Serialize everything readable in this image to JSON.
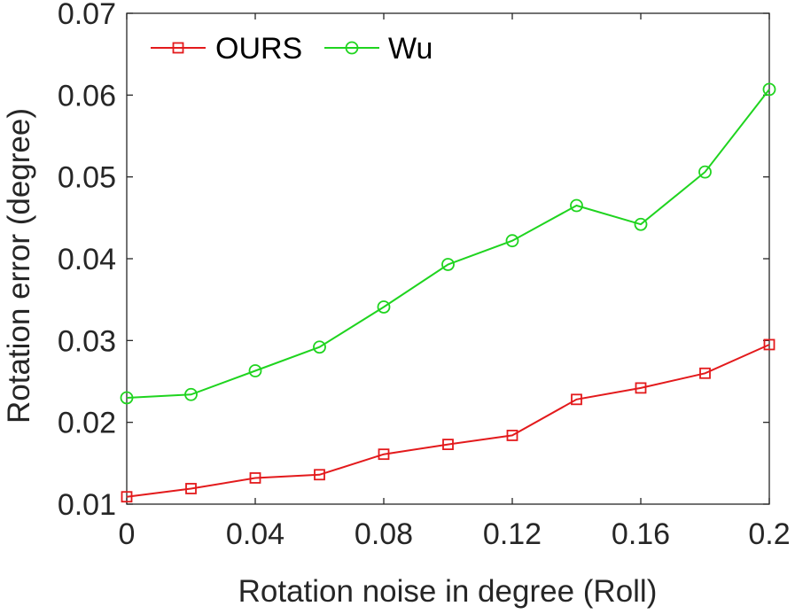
{
  "chart_data": {
    "type": "line",
    "title": "",
    "xlabel": "Rotation noise in degree (Roll)",
    "ylabel": "Rotation error (degree)",
    "xlim": [
      0,
      0.2
    ],
    "ylim": [
      0.01,
      0.07
    ],
    "x_ticks": [
      "0",
      "0.04",
      "0.08",
      "0.12",
      "0.16",
      "0.2"
    ],
    "y_ticks": [
      "0.01",
      "0.02",
      "0.03",
      "0.04",
      "0.05",
      "0.06",
      "0.07"
    ],
    "x": [
      0,
      0.02,
      0.04,
      0.06,
      0.08,
      0.1,
      0.12,
      0.14,
      0.16,
      0.18,
      0.2
    ],
    "series": [
      {
        "name": "OURS",
        "color": "#e31a1c",
        "marker": "square",
        "values": [
          0.0109,
          0.0119,
          0.0132,
          0.0136,
          0.0161,
          0.0173,
          0.0184,
          0.0228,
          0.0242,
          0.026,
          0.0295
        ]
      },
      {
        "name": "Wu",
        "color": "#1fd41f",
        "marker": "circle",
        "values": [
          0.023,
          0.0234,
          0.0263,
          0.0292,
          0.0341,
          0.0393,
          0.0422,
          0.0465,
          0.0442,
          0.0506,
          0.0607
        ]
      }
    ],
    "grid": false,
    "legend_position": "top-left"
  }
}
